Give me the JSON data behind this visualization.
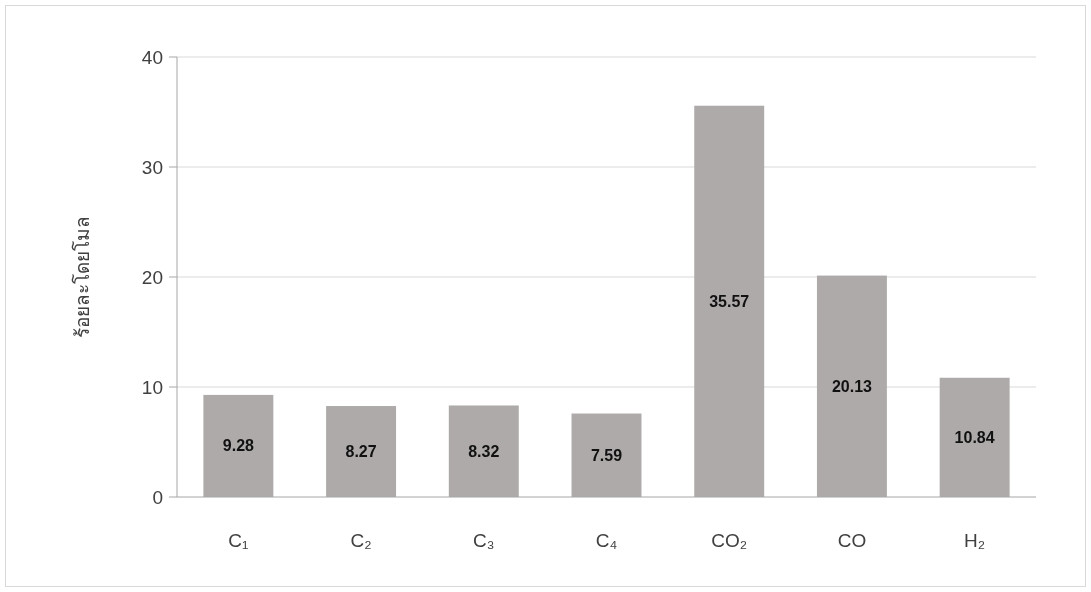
{
  "chart_data": {
    "type": "bar",
    "ylabel": "ร้อยละโดยโมล",
    "categories": [
      "C₁",
      "C₂",
      "C₃",
      "C₄",
      "CO₂",
      "CO",
      "H₂"
    ],
    "values": [
      9.28,
      8.27,
      8.32,
      7.59,
      35.57,
      20.13,
      10.84
    ],
    "color": "#aeaaaa",
    "ylim": [
      0,
      40
    ],
    "yticks": [
      0,
      10,
      20,
      30,
      40
    ],
    "grid": "y",
    "data_labels": true
  }
}
